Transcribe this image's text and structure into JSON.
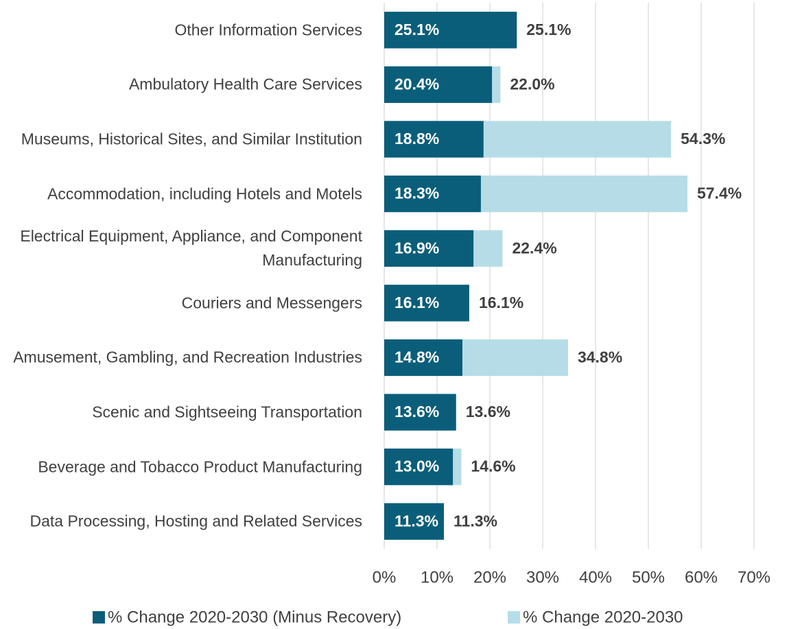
{
  "chart_data": {
    "type": "bar",
    "orientation": "horizontal",
    "overlap": true,
    "categories": [
      "Other Information Services",
      "Ambulatory Health Care Services",
      "Museums, Historical Sites, and Similar Institution",
      "Accommodation, including Hotels and Motels",
      "Electrical Equipment, Appliance, and Component Manufacturing",
      "Couriers and Messengers",
      "Amusement, Gambling, and Recreation Industries",
      "Scenic and Sightseeing Transportation",
      "Beverage and Tobacco Product Manufacturing",
      "Data Processing, Hosting and Related Services"
    ],
    "series": [
      {
        "name": "% Change 2020-2030 (Minus Recovery)",
        "color": "#0b5e7a",
        "values": [
          25.1,
          20.4,
          18.8,
          18.3,
          16.9,
          16.1,
          14.8,
          13.6,
          13.0,
          11.3
        ],
        "value_labels": [
          "25.1%",
          "20.4%",
          "18.8%",
          "18.3%",
          "16.9%",
          "16.1%",
          "14.8%",
          "13.6%",
          "13.0%",
          "11.3%"
        ]
      },
      {
        "name": "% Change 2020-2030",
        "color": "#b6dde7",
        "values": [
          25.1,
          22.0,
          54.3,
          57.4,
          22.4,
          16.1,
          34.8,
          13.6,
          14.6,
          11.3
        ],
        "value_labels": [
          "25.1%",
          "22.0%",
          "54.3%",
          "57.4%",
          "22.4%",
          "16.1%",
          "34.8%",
          "13.6%",
          "14.6%",
          "11.3%"
        ]
      }
    ],
    "xlim": [
      0,
      70
    ],
    "xticks": [
      {
        "value": 0,
        "label": "0%"
      },
      {
        "value": 10,
        "label": "10%"
      },
      {
        "value": 20,
        "label": "20%"
      },
      {
        "value": 30,
        "label": "30%"
      },
      {
        "value": 40,
        "label": "40%"
      },
      {
        "value": 50,
        "label": "50%"
      },
      {
        "value": 60,
        "label": "60%"
      },
      {
        "value": 70,
        "label": "70%"
      }
    ],
    "grid": true,
    "legend": "bottom"
  }
}
